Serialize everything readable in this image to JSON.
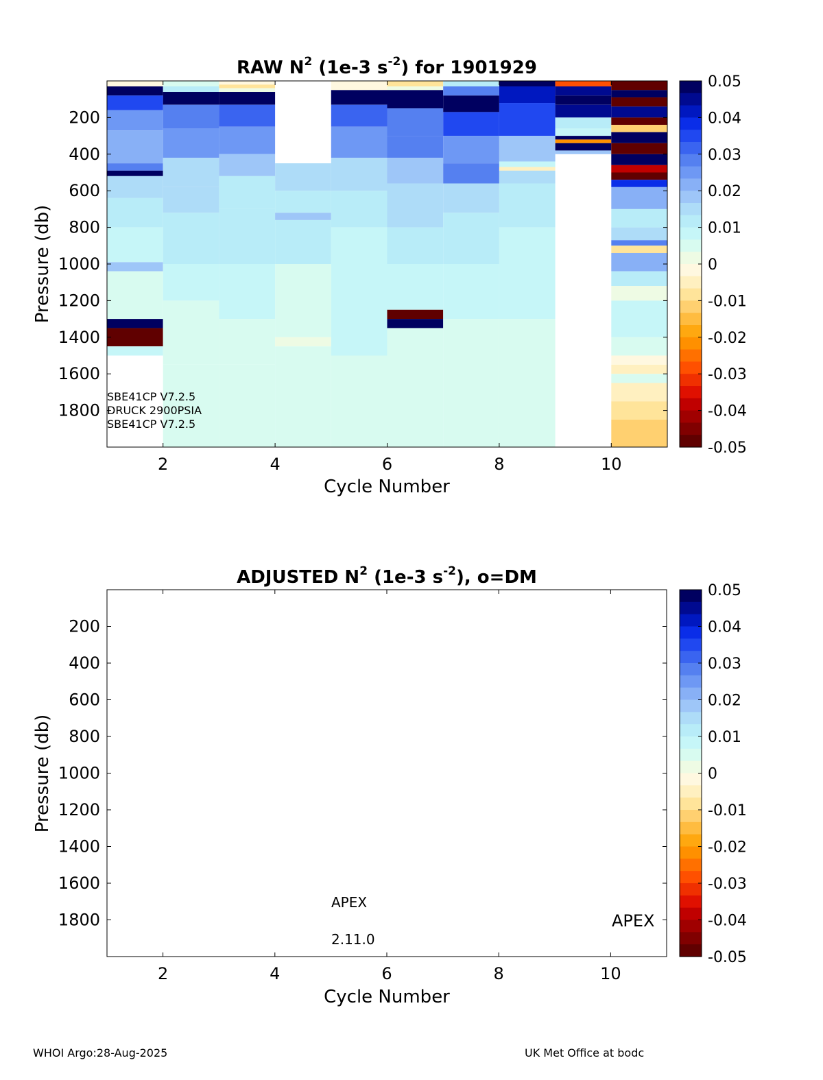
{
  "footer": {
    "left": "WHOI Argo:28-Aug-2025",
    "right": "UK Met Office at bodc"
  },
  "colorbar": {
    "ticks": [
      "0.05",
      "0.04",
      "0.03",
      "0.02",
      "0.01",
      "0",
      "-0.01",
      "-0.02",
      "-0.03",
      "-0.04",
      "-0.05"
    ],
    "colors": [
      "#000060",
      "#000a90",
      "#0018c0",
      "#0a2de8",
      "#2048f0",
      "#3a64f0",
      "#5580f0",
      "#6e98f4",
      "#88b0f6",
      "#9ec6f8",
      "#aedcf8",
      "#b8ecf8",
      "#c6f6f8",
      "#d8fbf0",
      "#eefbe4",
      "#fff8e0",
      "#fff0c0",
      "#ffe49a",
      "#ffd070",
      "#ffbc40",
      "#ffa810",
      "#ff9000",
      "#ff7000",
      "#ff5000",
      "#f03000",
      "#e01000",
      "#c00000",
      "#a00000",
      "#800000",
      "#600000"
    ]
  },
  "chart_data": [
    {
      "type": "heatmap",
      "title_main": "RAW N",
      "title_sup": "2",
      "title_unit_pre": " (1e-3 s",
      "title_unit_sup": "-2",
      "title_rest": ") for 1901929",
      "xlabel": "Cycle Number",
      "ylabel": "Pressure (db)",
      "xlim": [
        1,
        11
      ],
      "ylim": [
        2000,
        0
      ],
      "xticks": [
        "2",
        "4",
        "6",
        "8",
        "10"
      ],
      "yticks": [
        "200",
        "400",
        "600",
        "800",
        "1000",
        "1200",
        "1400",
        "1600",
        "1800"
      ],
      "zlim": [
        -0.05,
        0.05
      ],
      "annotations": [
        "SBE41CP V7.2.5",
        "DRUCK 2900PSIA",
        "SBE41CP V7.2.5"
      ],
      "cycles": [
        {
          "cycle": 1,
          "pmin": 0,
          "pmax": 1500,
          "layers": [
            [
              0,
              30,
              -0.002
            ],
            [
              30,
              80,
              0.05
            ],
            [
              80,
              160,
              0.034
            ],
            [
              160,
              270,
              0.026
            ],
            [
              270,
              450,
              0.022
            ],
            [
              450,
              490,
              0.03
            ],
            [
              490,
              520,
              0.05
            ],
            [
              520,
              640,
              0.016
            ],
            [
              640,
              800,
              0.011
            ],
            [
              800,
              990,
              0.009
            ],
            [
              990,
              1040,
              0.02
            ],
            [
              1040,
              1300,
              0.006
            ],
            [
              1300,
              1350,
              0.05
            ],
            [
              1350,
              1450,
              -0.05
            ],
            [
              1450,
              1500,
              0.009
            ]
          ]
        },
        {
          "cycle": 2,
          "pmin": 0,
          "pmax": 2000,
          "layers": [
            [
              0,
              30,
              0.005
            ],
            [
              30,
              60,
              0.012
            ],
            [
              60,
              130,
              0.05
            ],
            [
              130,
              260,
              0.028
            ],
            [
              260,
              420,
              0.024
            ],
            [
              420,
              580,
              0.015
            ],
            [
              580,
              720,
              0.016
            ],
            [
              720,
              1000,
              0.011
            ],
            [
              1000,
              1200,
              0.009
            ],
            [
              1200,
              1550,
              0.006
            ],
            [
              1550,
              2000,
              0.004
            ]
          ]
        },
        {
          "cycle": 3,
          "pmin": 0,
          "pmax": 2000,
          "layers": [
            [
              0,
              20,
              -0.002
            ],
            [
              20,
              40,
              -0.008
            ],
            [
              40,
              60,
              0.002
            ],
            [
              60,
              130,
              0.05
            ],
            [
              130,
              250,
              0.032
            ],
            [
              250,
              400,
              0.026
            ],
            [
              400,
              520,
              0.02
            ],
            [
              520,
              700,
              0.013
            ],
            [
              700,
              1000,
              0.011
            ],
            [
              1000,
              1300,
              0.009
            ],
            [
              1300,
              1550,
              0.006
            ],
            [
              1550,
              2000,
              0.004
            ]
          ]
        },
        {
          "cycle": 4,
          "pmin": 450,
          "pmax": 2000,
          "layers": [
            [
              450,
              600,
              0.014
            ],
            [
              600,
              720,
              0.012
            ],
            [
              720,
              760,
              0.02
            ],
            [
              760,
              1000,
              0.01
            ],
            [
              1000,
              1400,
              0.006
            ],
            [
              1400,
              1450,
              0.003
            ],
            [
              1450,
              2000,
              0.004
            ]
          ]
        },
        {
          "cycle": 5,
          "pmin": 0,
          "pmax": 2000,
          "layers": [
            [
              0,
              50,
              -0.002
            ],
            [
              50,
              130,
              0.05
            ],
            [
              130,
              250,
              0.032
            ],
            [
              250,
              420,
              0.024
            ],
            [
              420,
              600,
              0.015
            ],
            [
              600,
              800,
              0.011
            ],
            [
              800,
              1000,
              0.009
            ],
            [
              1000,
              1500,
              0.007
            ],
            [
              1500,
              2000,
              0.004
            ]
          ]
        },
        {
          "cycle": 6,
          "pmin": 0,
          "pmax": 2000,
          "layers": [
            [
              0,
              30,
              -0.008
            ],
            [
              30,
              50,
              0.002
            ],
            [
              50,
              150,
              0.048
            ],
            [
              150,
              300,
              0.03
            ],
            [
              300,
              420,
              0.028
            ],
            [
              420,
              560,
              0.02
            ],
            [
              560,
              800,
              0.014
            ],
            [
              800,
              1000,
              0.011
            ],
            [
              1000,
              1250,
              0.008
            ],
            [
              1250,
              1300,
              -0.05
            ],
            [
              1300,
              1350,
              0.05
            ],
            [
              1350,
              2000,
              0.005
            ]
          ]
        },
        {
          "cycle": 7,
          "pmin": 0,
          "pmax": 2000,
          "layers": [
            [
              0,
              30,
              0.012
            ],
            [
              30,
              80,
              0.03
            ],
            [
              80,
              170,
              0.05
            ],
            [
              170,
              300,
              0.034
            ],
            [
              300,
              450,
              0.026
            ],
            [
              450,
              560,
              0.03
            ],
            [
              560,
              720,
              0.015
            ],
            [
              720,
              1000,
              0.011
            ],
            [
              1000,
              1300,
              0.008
            ],
            [
              1300,
              2000,
              0.004
            ]
          ]
        },
        {
          "cycle": 8,
          "pmin": 0,
          "pmax": 2000,
          "layers": [
            [
              0,
              30,
              0.05
            ],
            [
              30,
              120,
              0.042
            ],
            [
              120,
              300,
              0.036
            ],
            [
              300,
              440,
              0.02
            ],
            [
              440,
              470,
              0.008
            ],
            [
              470,
              490,
              -0.004
            ],
            [
              490,
              560,
              0.016
            ],
            [
              560,
              800,
              0.012
            ],
            [
              800,
              1000,
              0.009
            ],
            [
              1000,
              1300,
              0.007
            ],
            [
              1300,
              2000,
              0.004
            ]
          ]
        },
        {
          "cycle": 9,
          "pmin": 0,
          "pmax": 400,
          "layers": [
            [
              0,
              30,
              -0.03
            ],
            [
              30,
              80,
              0.044
            ],
            [
              80,
              130,
              0.05
            ],
            [
              130,
              200,
              0.045
            ],
            [
              200,
              260,
              0.012
            ],
            [
              260,
              300,
              0.008
            ],
            [
              300,
              320,
              0.05
            ],
            [
              320,
              340,
              -0.02
            ],
            [
              340,
              380,
              0.05
            ],
            [
              380,
              400,
              0.02
            ]
          ]
        },
        {
          "cycle": 10,
          "pmin": 0,
          "pmax": 2000,
          "layers": [
            [
              0,
              50,
              -0.05
            ],
            [
              50,
              90,
              0.05
            ],
            [
              90,
              140,
              -0.048
            ],
            [
              140,
              200,
              0.045
            ],
            [
              200,
              240,
              -0.048
            ],
            [
              240,
              280,
              -0.012
            ],
            [
              280,
              340,
              0.05
            ],
            [
              340,
              400,
              -0.048
            ],
            [
              400,
              460,
              0.05
            ],
            [
              460,
              500,
              -0.04
            ],
            [
              500,
              540,
              -0.05
            ],
            [
              540,
              580,
              0.04
            ],
            [
              580,
              700,
              0.022
            ],
            [
              700,
              800,
              0.012
            ],
            [
              800,
              870,
              0.016
            ],
            [
              870,
              900,
              0.03
            ],
            [
              900,
              940,
              -0.008
            ],
            [
              940,
              1040,
              0.022
            ],
            [
              1040,
              1120,
              0.012
            ],
            [
              1120,
              1200,
              0.002
            ],
            [
              1200,
              1400,
              0.008
            ],
            [
              1400,
              1500,
              0.005
            ],
            [
              1500,
              1550,
              -0.002
            ],
            [
              1550,
              1600,
              -0.004
            ],
            [
              1600,
              1650,
              0.004
            ],
            [
              1650,
              1750,
              -0.004
            ],
            [
              1750,
              1850,
              -0.007
            ],
            [
              1850,
              2000,
              -0.012
            ]
          ]
        }
      ]
    },
    {
      "type": "heatmap",
      "title_main": "ADJUSTED N",
      "title_sup": "2",
      "title_unit_pre": " (1e-3 s",
      "title_unit_sup": "-2",
      "title_rest": "), o=DM",
      "xlabel": "Cycle Number",
      "ylabel": "Pressure (db)",
      "xlim": [
        1,
        11
      ],
      "ylim": [
        2000,
        0
      ],
      "xticks": [
        "2",
        "4",
        "6",
        "8",
        "10"
      ],
      "yticks": [
        "200",
        "400",
        "600",
        "800",
        "1000",
        "1200",
        "1400",
        "1600",
        "1800"
      ],
      "zlim": [
        -0.05,
        0.05
      ],
      "annotations": [
        "APEX",
        "2.11.0",
        "APEX"
      ],
      "cycles": []
    }
  ]
}
